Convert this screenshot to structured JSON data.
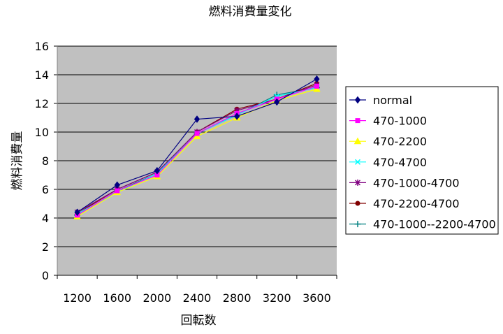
{
  "chart_data": {
    "type": "line",
    "title": "燃料消費量変化",
    "xlabel": "回転数",
    "ylabel": "燃料消費量",
    "categories": [
      "1200",
      "1600",
      "2000",
      "2400",
      "2800",
      "3200",
      "3600"
    ],
    "ylim": [
      0,
      16
    ],
    "yticks": [
      0,
      2,
      4,
      6,
      8,
      10,
      12,
      14,
      16
    ],
    "grid": true,
    "legend_position": "right",
    "plot_background": "#c0c0c0",
    "series": [
      {
        "name": "normal",
        "color": "#000080",
        "marker": "diamond",
        "x": [
          1200,
          1600,
          2000,
          2400,
          2800,
          3200,
          3600
        ],
        "values": [
          4.4,
          6.3,
          7.3,
          10.9,
          11.1,
          12.1,
          13.7
        ]
      },
      {
        "name": "470-1000",
        "color": "#ff00ff",
        "marker": "square",
        "x": [
          1200,
          1600,
          2000,
          2400,
          2800,
          3200,
          3600
        ],
        "values": [
          4.2,
          5.9,
          7.0,
          9.9,
          11.3,
          12.3,
          13.2
        ]
      },
      {
        "name": "470-2200",
        "color": "#ffff00",
        "marker": "triangle",
        "x": [
          1200,
          1600,
          2000,
          2400,
          2800,
          3200,
          3600
        ],
        "values": [
          4.1,
          5.8,
          6.9,
          9.7,
          11.0,
          12.2,
          13.0
        ]
      },
      {
        "name": "470-4700",
        "color": "#00ffff",
        "marker": "x",
        "x": [
          1200,
          1600,
          2000,
          2400,
          2800,
          3200,
          3600
        ],
        "values": [
          4.3,
          5.8,
          7.1,
          9.9,
          11.2,
          12.5,
          13.1
        ]
      },
      {
        "name": "470-1000-4700",
        "color": "#800080",
        "marker": "star",
        "x": [
          1200,
          1600,
          2000,
          2400,
          2800,
          3200,
          3600
        ],
        "values": [
          4.4,
          6.0,
          7.2,
          10.0,
          11.5,
          12.3,
          13.3
        ]
      },
      {
        "name": "470-2200-4700",
        "color": "#800000",
        "marker": "circle",
        "x": [
          1200,
          1600,
          2000,
          2400,
          2800,
          3200,
          3600
        ],
        "values": [
          4.3,
          6.0,
          7.2,
          10.0,
          11.6,
          12.3,
          13.4
        ]
      },
      {
        "name": "470-1000--2200-4700",
        "color": "#008080",
        "marker": "plus",
        "x": [
          1200,
          1600,
          2000,
          2400,
          2800,
          3200,
          3600
        ],
        "values": [
          4.2,
          5.9,
          7.1,
          9.9,
          11.2,
          12.6,
          13.1
        ]
      }
    ]
  }
}
